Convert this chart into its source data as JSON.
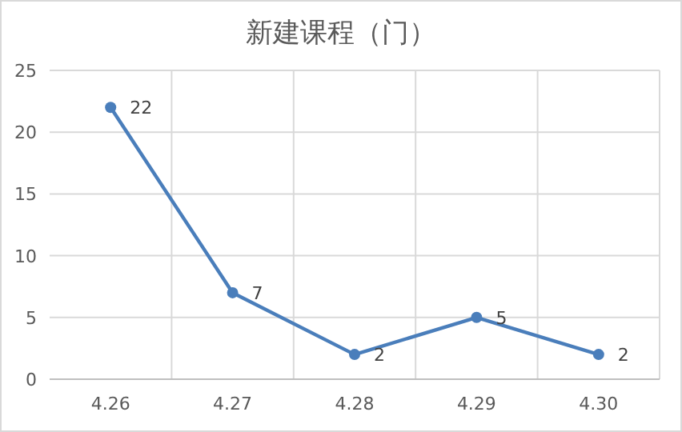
{
  "chart_data": {
    "type": "line",
    "title": "新建课程（门）",
    "categories": [
      "4.26",
      "4.27",
      "4.28",
      "4.29",
      "4.30"
    ],
    "values": [
      22,
      7,
      2,
      5,
      2
    ],
    "color": "#4a7ebb",
    "ylim": [
      0,
      25
    ],
    "yticks": [
      0,
      5,
      10,
      15,
      20,
      25
    ],
    "grid": true,
    "marker": "circle",
    "data_labels": true
  }
}
